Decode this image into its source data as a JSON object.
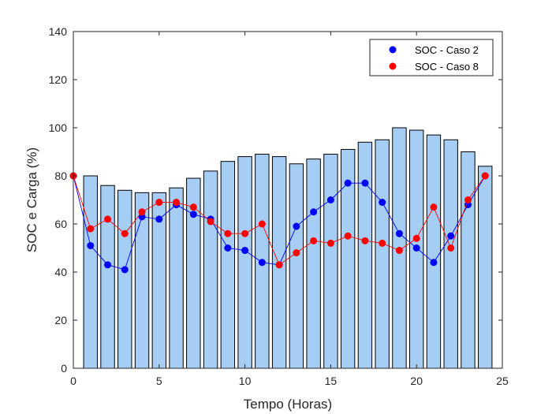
{
  "chart_data": {
    "type": "bar+line",
    "xlabel": "Tempo (Horas)",
    "ylabel": "SOC e Carga (%)",
    "xlim": [
      0,
      25
    ],
    "ylim": [
      0,
      140
    ],
    "xticks": [
      0,
      5,
      10,
      15,
      20,
      25
    ],
    "yticks": [
      0,
      20,
      40,
      60,
      80,
      100,
      120,
      140
    ],
    "grid": false,
    "legend_position": "top-right",
    "bars": {
      "x": [
        1,
        2,
        3,
        4,
        5,
        6,
        7,
        8,
        9,
        10,
        11,
        12,
        13,
        14,
        15,
        16,
        17,
        18,
        19,
        20,
        21,
        22,
        23,
        24
      ],
      "values": [
        80,
        76,
        74,
        73,
        73,
        75,
        79,
        82,
        86,
        88,
        89,
        88,
        85,
        87,
        89,
        91,
        94,
        95,
        100,
        99,
        97,
        95,
        90,
        84
      ],
      "color": "#a6cef5"
    },
    "series": [
      {
        "name": "SOC - Caso 2",
        "color": "#0000ff",
        "x": [
          0,
          1,
          2,
          3,
          4,
          5,
          6,
          7,
          8,
          9,
          10,
          11,
          12,
          13,
          14,
          15,
          16,
          17,
          18,
          19,
          20,
          21,
          22,
          23,
          24
        ],
        "values": [
          80,
          51,
          43,
          41,
          63,
          62,
          68,
          64,
          62,
          50,
          49,
          44,
          43,
          59,
          65,
          70,
          77,
          77,
          69,
          56,
          50,
          44,
          55,
          68,
          80
        ]
      },
      {
        "name": "SOC - Caso 8",
        "color": "#ff0000",
        "x": [
          0,
          1,
          2,
          3,
          4,
          5,
          6,
          7,
          8,
          9,
          10,
          11,
          12,
          13,
          14,
          15,
          16,
          17,
          18,
          19,
          20,
          21,
          22,
          23,
          24
        ],
        "values": [
          80,
          58,
          62,
          56,
          65,
          69,
          69,
          67,
          61,
          56,
          56,
          60,
          43,
          48,
          53,
          52,
          55,
          53,
          52,
          49,
          54,
          67,
          50,
          70,
          80
        ]
      }
    ]
  }
}
